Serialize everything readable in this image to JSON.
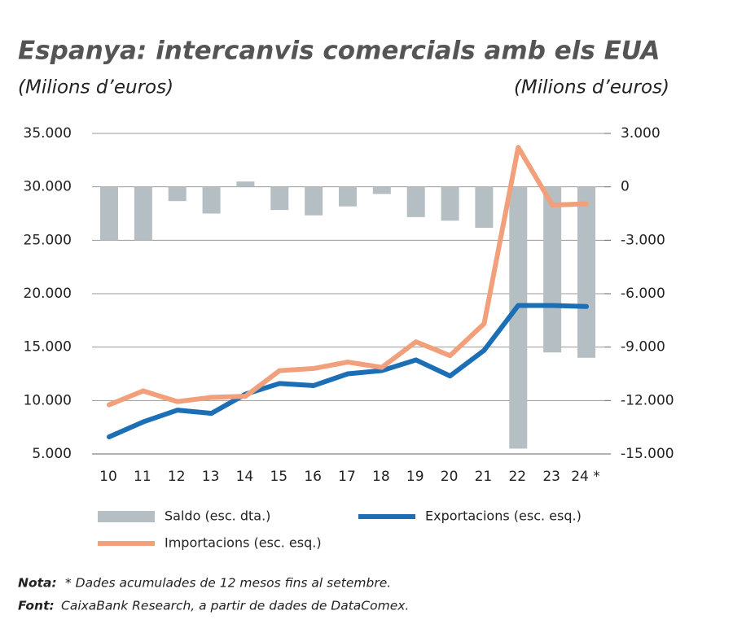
{
  "chart_data": {
    "type": "combo",
    "title": "Espanya: intercanvis comercials amb els EUA",
    "y_label": "(Milions d’euros)",
    "y2_label": "(Milions d’euros)",
    "categories": [
      "10",
      "11",
      "12",
      "13",
      "14",
      "15",
      "16",
      "17",
      "18",
      "19",
      "20",
      "21",
      "22",
      "23",
      "24 *"
    ],
    "series": [
      {
        "name": "Saldo (esc. dta.)",
        "type": "bar",
        "axis": "y2",
        "color": "#b5bfc3",
        "values": [
          -3000,
          -3000,
          -800,
          -1500,
          300,
          -1300,
          -1600,
          -1100,
          -400,
          -1700,
          -1900,
          -2300,
          -14700,
          -9300,
          -9600
        ]
      },
      {
        "name": "Exportacions (esc. esq.)",
        "type": "line",
        "color": "#1c6fb5",
        "values": [
          6600,
          8000,
          9100,
          8800,
          10600,
          11600,
          11400,
          12500,
          12800,
          13800,
          12300,
          14700,
          18900,
          18900,
          18800
        ]
      },
      {
        "name": "Importacions (esc. esq.)",
        "type": "line",
        "color": "#f2a07b",
        "values": [
          9600,
          10900,
          9900,
          10300,
          10400,
          12800,
          13000,
          13600,
          13100,
          15500,
          14200,
          17200,
          33700,
          28300,
          28400
        ]
      }
    ],
    "ylim": [
      5000,
      35000
    ],
    "yticks": [
      {
        "value": 5000,
        "label": "5.000"
      },
      {
        "value": 10000,
        "label": "10.000"
      },
      {
        "value": 15000,
        "label": "15.000"
      },
      {
        "value": 20000,
        "label": "20.000"
      },
      {
        "value": 25000,
        "label": "25.000"
      },
      {
        "value": 30000,
        "label": "30.000"
      },
      {
        "value": 35000,
        "label": "35.000"
      }
    ],
    "y2lim": [
      -15000,
      3000
    ],
    "y2ticks": [
      {
        "value": -15000,
        "label": "-15.000"
      },
      {
        "value": -12000,
        "label": "-12.000"
      },
      {
        "value": -9000,
        "label": "-9.000"
      },
      {
        "value": -6000,
        "label": "-6.000"
      },
      {
        "value": -3000,
        "label": "-3.000"
      },
      0,
      {
        "value": 3000,
        "label": "3.000"
      }
    ],
    "grid": true,
    "note_label": "Nota:",
    "note": "* Dades acumulades de 12 mesos fins al setembre.",
    "source_label": "Font:",
    "source": "CaixaBank Research, a partir de dades de DataComex."
  }
}
